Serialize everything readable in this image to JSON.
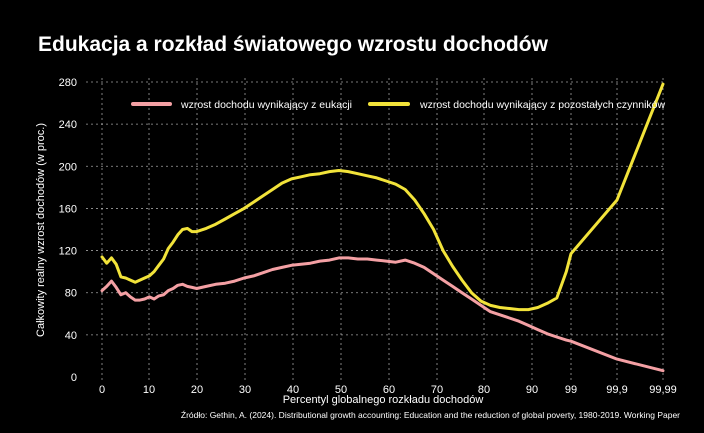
{
  "chart_data": {
    "type": "line",
    "title": "Edukacja a rozkład światowego wzrostu dochodów",
    "xlabel": "Percentyl globalnego rozkładu dochodów",
    "ylabel": "Całkowity realny wzrost dochodów (w proc.)",
    "source": "Źródło: Gethin, A. (2024). Distributional growth accounting: Education and the reduction of global poverty, 1980-2019. Working Paper",
    "x_ticks": [
      "0",
      "10",
      "20",
      "30",
      "40",
      "50",
      "60",
      "70",
      "80",
      "90",
      "99",
      "99,9",
      "99,99"
    ],
    "y_ticks": [
      0,
      40,
      80,
      120,
      160,
      200,
      240,
      280
    ],
    "ylim": [
      0,
      280
    ],
    "grid": true,
    "legend_position": "top",
    "series": [
      {
        "name": "wzrost dochodu wynikający z eukacji",
        "color": "#f4a0a4",
        "points": [
          [
            0,
            82
          ],
          [
            1,
            86
          ],
          [
            2,
            91
          ],
          [
            3,
            85
          ],
          [
            4,
            78
          ],
          [
            5,
            80
          ],
          [
            6,
            76
          ],
          [
            7,
            73
          ],
          [
            8,
            73
          ],
          [
            9,
            74
          ],
          [
            10,
            76
          ],
          [
            11,
            74
          ],
          [
            12,
            77
          ],
          [
            13,
            78
          ],
          [
            14,
            82
          ],
          [
            15,
            84
          ],
          [
            16,
            87
          ],
          [
            17,
            88
          ],
          [
            18,
            86
          ],
          [
            19,
            85
          ],
          [
            20,
            84
          ],
          [
            22,
            86
          ],
          [
            24,
            88
          ],
          [
            26,
            89
          ],
          [
            28,
            91
          ],
          [
            30,
            94
          ],
          [
            32,
            96
          ],
          [
            34,
            99
          ],
          [
            36,
            102
          ],
          [
            38,
            104
          ],
          [
            40,
            106
          ],
          [
            42,
            107
          ],
          [
            44,
            108
          ],
          [
            46,
            110
          ],
          [
            48,
            111
          ],
          [
            50,
            113
          ],
          [
            52,
            113
          ],
          [
            54,
            112
          ],
          [
            56,
            112
          ],
          [
            58,
            111
          ],
          [
            60,
            110
          ],
          [
            62,
            109
          ],
          [
            64,
            111
          ],
          [
            66,
            108
          ],
          [
            68,
            104
          ],
          [
            70,
            98
          ],
          [
            72,
            92
          ],
          [
            74,
            86
          ],
          [
            76,
            80
          ],
          [
            78,
            74
          ],
          [
            80,
            68
          ],
          [
            82,
            62
          ],
          [
            84,
            59
          ],
          [
            86,
            56
          ],
          [
            88,
            53
          ],
          [
            90,
            49
          ],
          [
            92,
            45
          ],
          [
            94,
            41
          ],
          [
            96,
            38
          ],
          [
            98,
            35
          ],
          [
            99,
            34
          ],
          [
            99.9,
            17
          ],
          [
            99.99,
            6
          ]
        ]
      },
      {
        "name": "wzrost dochodu wynikający z pozostałych czynników",
        "color": "#f2e33a",
        "points": [
          [
            0,
            114
          ],
          [
            1,
            108
          ],
          [
            2,
            113
          ],
          [
            3,
            107
          ],
          [
            4,
            95
          ],
          [
            5,
            94
          ],
          [
            6,
            92
          ],
          [
            7,
            90
          ],
          [
            8,
            92
          ],
          [
            9,
            94
          ],
          [
            10,
            96
          ],
          [
            11,
            100
          ],
          [
            12,
            106
          ],
          [
            13,
            112
          ],
          [
            14,
            122
          ],
          [
            15,
            128
          ],
          [
            16,
            135
          ],
          [
            17,
            140
          ],
          [
            18,
            141
          ],
          [
            19,
            138
          ],
          [
            20,
            138
          ],
          [
            22,
            141
          ],
          [
            24,
            145
          ],
          [
            26,
            150
          ],
          [
            28,
            155
          ],
          [
            30,
            160
          ],
          [
            32,
            166
          ],
          [
            34,
            172
          ],
          [
            36,
            178
          ],
          [
            38,
            184
          ],
          [
            40,
            188
          ],
          [
            42,
            190
          ],
          [
            44,
            192
          ],
          [
            46,
            193
          ],
          [
            48,
            195
          ],
          [
            50,
            196
          ],
          [
            52,
            195
          ],
          [
            54,
            193
          ],
          [
            56,
            191
          ],
          [
            58,
            189
          ],
          [
            60,
            186
          ],
          [
            62,
            183
          ],
          [
            64,
            178
          ],
          [
            66,
            168
          ],
          [
            68,
            155
          ],
          [
            70,
            140
          ],
          [
            72,
            120
          ],
          [
            74,
            105
          ],
          [
            76,
            92
          ],
          [
            78,
            80
          ],
          [
            80,
            72
          ],
          [
            82,
            68
          ],
          [
            84,
            66
          ],
          [
            86,
            65
          ],
          [
            88,
            64
          ],
          [
            90,
            64
          ],
          [
            92,
            66
          ],
          [
            94,
            70
          ],
          [
            96,
            75
          ],
          [
            98,
            100
          ],
          [
            99,
            117
          ],
          [
            99.9,
            168
          ],
          [
            99.99,
            278
          ]
        ]
      }
    ]
  }
}
